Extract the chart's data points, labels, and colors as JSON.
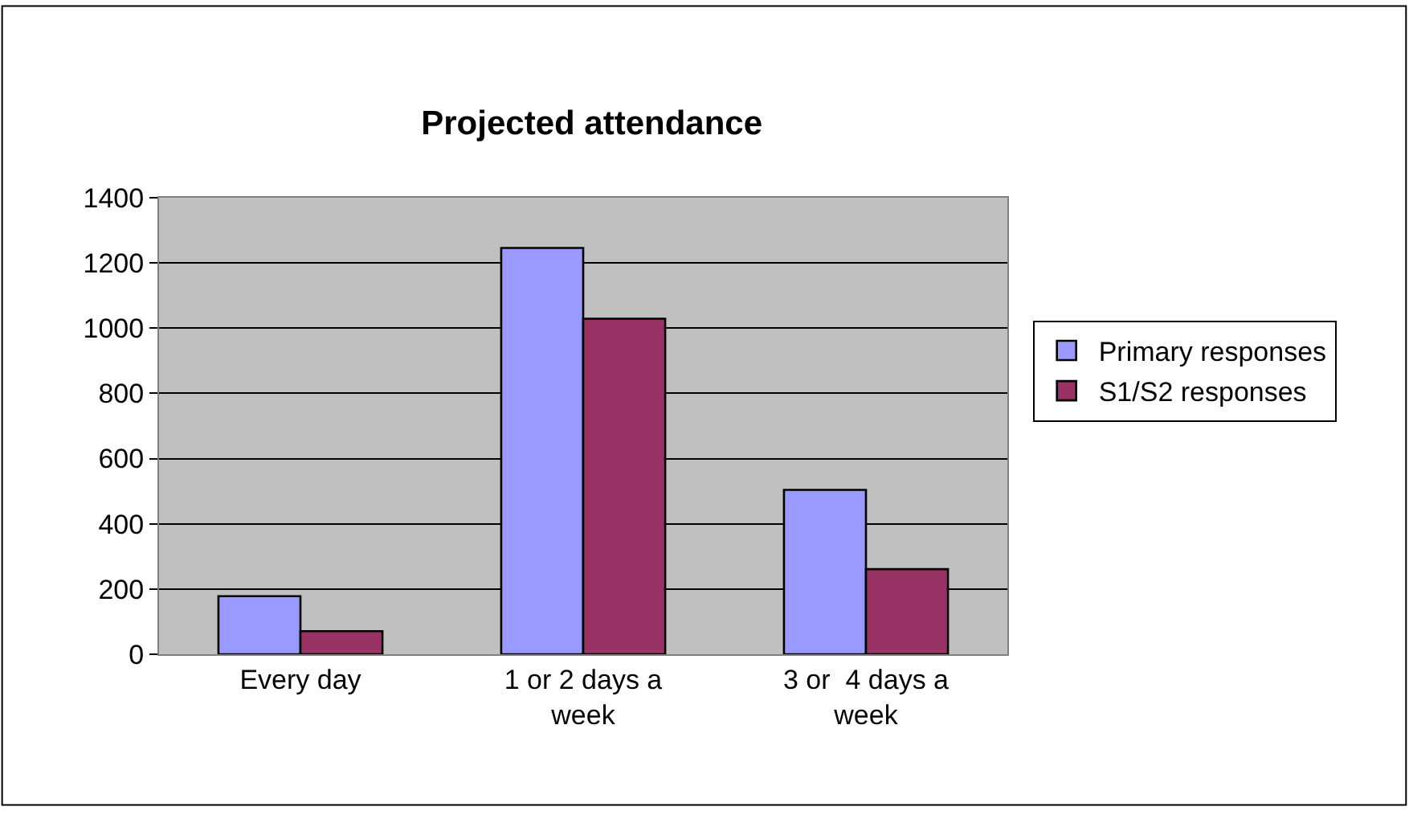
{
  "chart_data": {
    "type": "bar",
    "title": "Projected attendance",
    "categories": [
      "Every day",
      "1 or 2 days a week",
      "3 or  4 days a week"
    ],
    "series": [
      {
        "name": "Primary responses",
        "color": "#9999ff",
        "values": [
          178,
          1246,
          504
        ]
      },
      {
        "name": "S1/S2 responses",
        "color": "#993366",
        "values": [
          71,
          1029,
          261
        ]
      }
    ],
    "ylim": [
      0,
      1400
    ],
    "yticks": [
      0,
      200,
      400,
      600,
      800,
      1000,
      1200,
      1400
    ],
    "grid": "y",
    "legend": "right"
  }
}
